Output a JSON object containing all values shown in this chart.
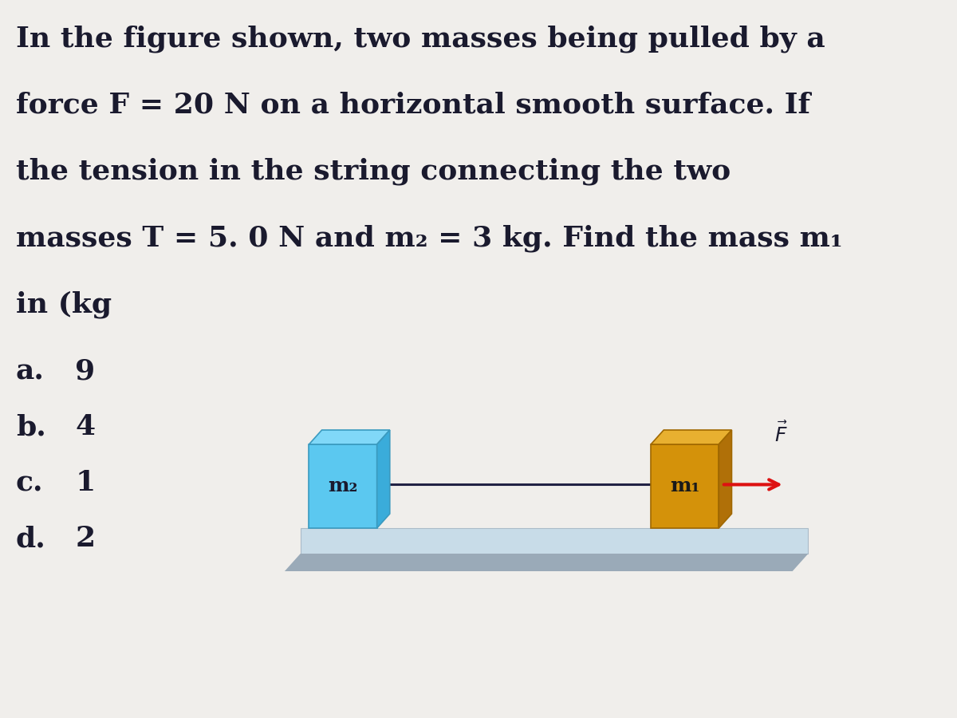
{
  "bg_color": "#f0eeeb",
  "text_color": "#1a1a2e",
  "title_lines": [
    "In the figure shown, two masses being pulled by a",
    "force F = 20 N on a horizontal smooth surface. If",
    "the tension in the string connecting the two",
    "masses T = 5. 0 N and m₂ = 3 kg. Find the mass m₁",
    "in (kg"
  ],
  "choices_labels": [
    "a.",
    "b.",
    "c.",
    "d."
  ],
  "choices_values": [
    "9",
    "4",
    "1",
    "2"
  ],
  "m2_color": "#5bc8f0",
  "m2_edge": "#3a9abf",
  "m1_color": "#d4920a",
  "m1_edge": "#a06800",
  "surface_top": "#c8dce8",
  "surface_mid": "#b8ccd8",
  "surface_bot": "#9aaab8",
  "string_color": "#222244",
  "force_arrow_color": "#dd1111",
  "m2_label": "m₂",
  "m1_label": "m₁"
}
